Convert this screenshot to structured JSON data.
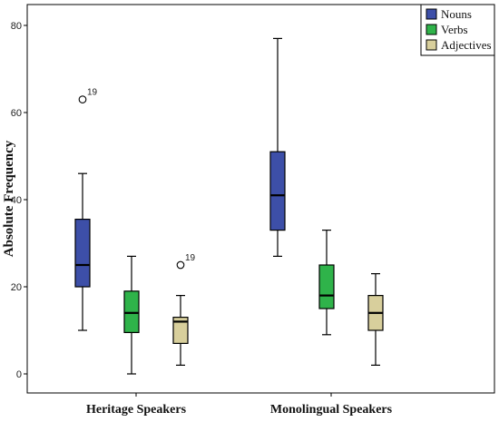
{
  "chart_data": {
    "type": "boxplot",
    "ylabel": "Absolute Frequency",
    "ylim": [
      -4,
      84
    ],
    "yticks": [
      0,
      20,
      40,
      60,
      80
    ],
    "categories": [
      "Heritage Speakers",
      "Monolingual Speakers"
    ],
    "series": [
      {
        "name": "Nouns",
        "color": "#3d4fa8",
        "boxes": [
          {
            "min": 10,
            "q1": 20,
            "median": 25,
            "q3": 35.5,
            "max": 46,
            "outliers": [
              {
                "value": 63,
                "label": "19"
              }
            ]
          },
          {
            "min": 27,
            "q1": 33,
            "median": 41,
            "q3": 51,
            "max": 77,
            "outliers": []
          }
        ]
      },
      {
        "name": "Verbs",
        "color": "#2fb34a",
        "boxes": [
          {
            "min": 0,
            "q1": 9.5,
            "median": 14,
            "q3": 19,
            "max": 27,
            "outliers": []
          },
          {
            "min": 9,
            "q1": 15,
            "median": 18,
            "q3": 25,
            "max": 33,
            "outliers": []
          }
        ]
      },
      {
        "name": "Adjectives",
        "color": "#d8cf9c",
        "boxes": [
          {
            "min": 2,
            "q1": 7,
            "median": 12,
            "q3": 13,
            "max": 18,
            "outliers": [
              {
                "value": 25,
                "label": "19"
              }
            ]
          },
          {
            "min": 2,
            "q1": 10,
            "median": 14,
            "q3": 18,
            "max": 23,
            "outliers": []
          }
        ]
      }
    ],
    "legend": {
      "position": "top-right"
    },
    "grid": false
  }
}
